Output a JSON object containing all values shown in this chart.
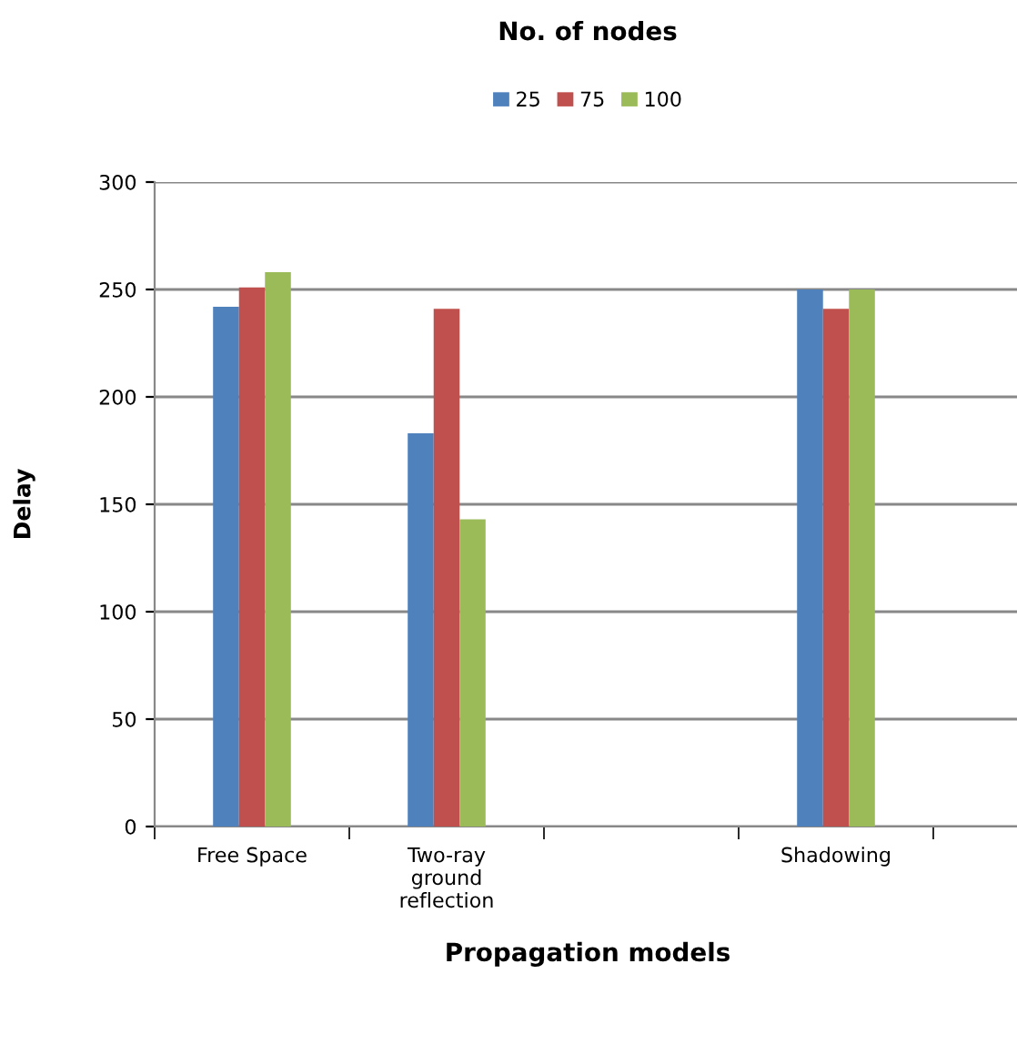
{
  "chart_data": {
    "type": "bar",
    "legend_title": "No. of nodes",
    "xlabel": "Propagation models",
    "ylabel": "Delay",
    "categories": [
      "Free Space",
      "Two-ray\nground\nreflection",
      null,
      "Shadowing",
      null
    ],
    "series": [
      {
        "name": "25",
        "color": "#4f81bd",
        "values": [
          242,
          183,
          null,
          250,
          null
        ]
      },
      {
        "name": "75",
        "color": "#c0504d",
        "values": [
          251,
          241,
          null,
          241,
          null
        ]
      },
      {
        "name": "100",
        "color": "#9bbb59",
        "values": [
          258,
          143,
          null,
          250,
          null
        ]
      }
    ],
    "ylim": [
      0,
      300
    ],
    "yticks": [
      0,
      50,
      100,
      150,
      200,
      250,
      300
    ],
    "grid": "y",
    "legend": "top"
  }
}
